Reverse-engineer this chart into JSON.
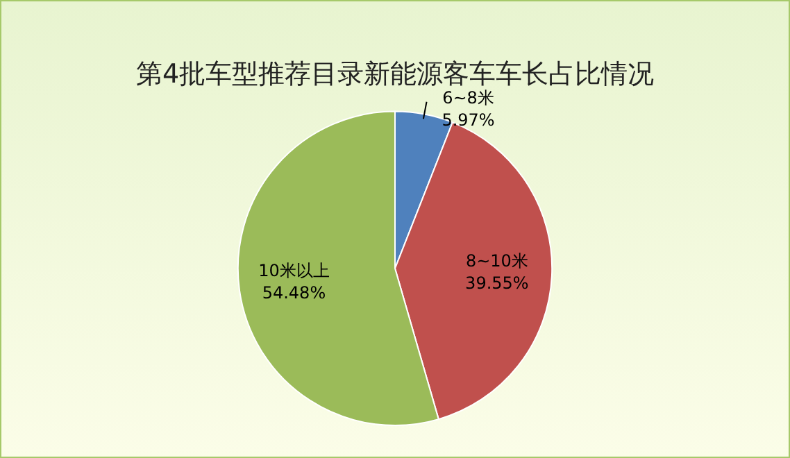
{
  "chart_data": {
    "type": "pie",
    "title": "第4批车型推荐目录新能源客车车长占比情况",
    "categories": [
      "6~8米",
      "8~10米",
      "10米以上"
    ],
    "values": [
      5.97,
      39.55,
      54.48
    ],
    "value_labels": [
      "5.97%",
      "39.55%",
      "54.48%"
    ],
    "colors": [
      "#4f81bd",
      "#c0504d",
      "#9bbb59"
    ],
    "legend": false
  }
}
